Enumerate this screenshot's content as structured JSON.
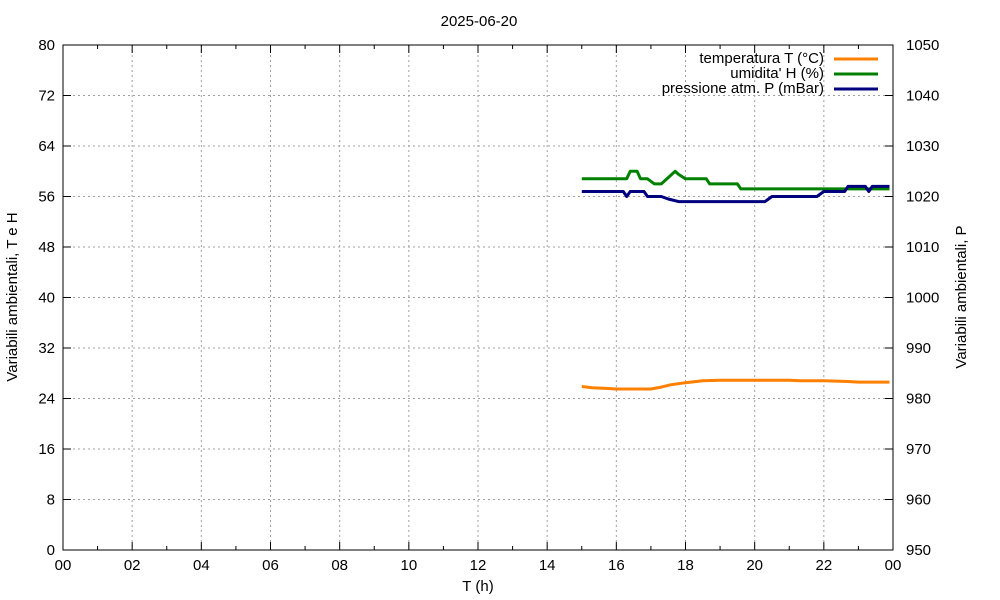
{
  "chart_data": {
    "type": "line",
    "title": "2025-06-20",
    "xlabel": "T (h)",
    "ylabel_left": "Variabili ambientali, T e H",
    "ylabel_right": "Variabili ambientali, P",
    "xlim": [
      0,
      24
    ],
    "ylim_left": [
      0,
      80
    ],
    "ylim_right": [
      950,
      1050
    ],
    "x_tick_labels": [
      "00",
      "02",
      "04",
      "06",
      "08",
      "10",
      "12",
      "14",
      "16",
      "18",
      "20",
      "22",
      "00"
    ],
    "y_left_ticks": [
      0,
      8,
      16,
      24,
      32,
      40,
      48,
      56,
      64,
      72,
      80
    ],
    "y_right_ticks": [
      950,
      960,
      970,
      980,
      990,
      1000,
      1010,
      1020,
      1030,
      1040,
      1050
    ],
    "grid": true,
    "legend_position": "top-right",
    "series": [
      {
        "name": "temperatura T (°C)",
        "axis": "left",
        "color": "#ff7f00",
        "points": [
          [
            15.0,
            25.9
          ],
          [
            15.3,
            25.7
          ],
          [
            15.7,
            25.6
          ],
          [
            16.0,
            25.5
          ],
          [
            16.5,
            25.5
          ],
          [
            17.0,
            25.5
          ],
          [
            17.3,
            25.8
          ],
          [
            17.6,
            26.2
          ],
          [
            18.0,
            26.5
          ],
          [
            18.5,
            26.8
          ],
          [
            19.0,
            26.9
          ],
          [
            19.5,
            26.9
          ],
          [
            20.0,
            26.9
          ],
          [
            20.5,
            26.9
          ],
          [
            21.0,
            26.9
          ],
          [
            21.3,
            26.8
          ],
          [
            22.0,
            26.8
          ],
          [
            22.7,
            26.7
          ],
          [
            23.0,
            26.6
          ],
          [
            23.5,
            26.6
          ],
          [
            23.9,
            26.6
          ]
        ]
      },
      {
        "name": "umidita' H (%)",
        "axis": "left",
        "color": "#008000",
        "points": [
          [
            15.0,
            58.8
          ],
          [
            15.5,
            58.8
          ],
          [
            16.0,
            58.8
          ],
          [
            16.3,
            58.8
          ],
          [
            16.4,
            60.0
          ],
          [
            16.6,
            60.0
          ],
          [
            16.7,
            58.8
          ],
          [
            16.9,
            58.8
          ],
          [
            17.1,
            58.0
          ],
          [
            17.3,
            58.0
          ],
          [
            17.5,
            59.0
          ],
          [
            17.7,
            60.0
          ],
          [
            17.8,
            59.5
          ],
          [
            18.0,
            58.8
          ],
          [
            18.3,
            58.8
          ],
          [
            18.6,
            58.8
          ],
          [
            18.7,
            58.0
          ],
          [
            19.0,
            58.0
          ],
          [
            19.5,
            58.0
          ],
          [
            19.6,
            57.2
          ],
          [
            20.0,
            57.2
          ],
          [
            21.0,
            57.2
          ],
          [
            22.0,
            57.2
          ],
          [
            22.5,
            57.2
          ],
          [
            22.9,
            57.2
          ],
          [
            23.2,
            57.2
          ],
          [
            23.5,
            57.2
          ],
          [
            23.9,
            57.2
          ]
        ]
      },
      {
        "name": "pressione atm. P (mBar)",
        "axis": "right",
        "color": "#00007f",
        "points": [
          [
            15.0,
            1021
          ],
          [
            15.5,
            1021
          ],
          [
            16.0,
            1021
          ],
          [
            16.2,
            1021
          ],
          [
            16.3,
            1020
          ],
          [
            16.4,
            1021
          ],
          [
            16.8,
            1021
          ],
          [
            16.9,
            1020
          ],
          [
            17.3,
            1020
          ],
          [
            17.5,
            1019.5
          ],
          [
            17.8,
            1019
          ],
          [
            18.3,
            1019
          ],
          [
            19.0,
            1019
          ],
          [
            19.5,
            1019
          ],
          [
            20.0,
            1019
          ],
          [
            20.3,
            1019
          ],
          [
            20.5,
            1020
          ],
          [
            21.0,
            1020
          ],
          [
            21.5,
            1020
          ],
          [
            21.8,
            1020
          ],
          [
            22.0,
            1021
          ],
          [
            22.6,
            1021
          ],
          [
            22.7,
            1022
          ],
          [
            23.2,
            1022
          ],
          [
            23.3,
            1021
          ],
          [
            23.4,
            1022
          ],
          [
            23.9,
            1022
          ]
        ]
      }
    ]
  }
}
